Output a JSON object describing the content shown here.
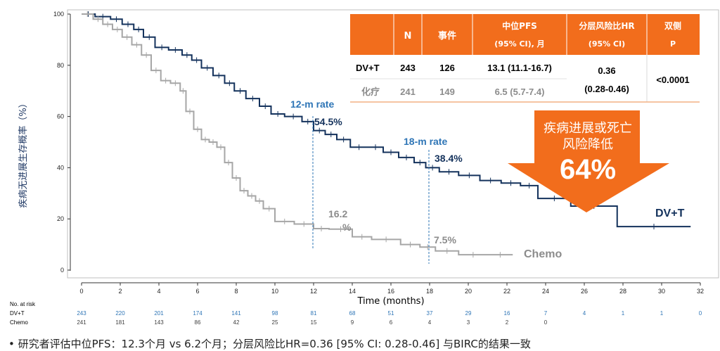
{
  "chart_data": {
    "type": "line",
    "xlabel": "Time (months)",
    "ylabel": "疾病无进展生存概率（%）",
    "xlim": [
      0,
      32
    ],
    "ylim": [
      0,
      100
    ],
    "x_ticks": [
      "0",
      "2",
      "4",
      "6",
      "8",
      "10",
      "12",
      "14",
      "16",
      "18",
      "20",
      "22",
      "24",
      "26",
      "28",
      "30",
      "32"
    ],
    "y_ticks": [
      "0",
      "20",
      "40",
      "60",
      "80",
      "100"
    ],
    "series": [
      {
        "name": "DV+T",
        "color": "#14325c",
        "x": [
          0,
          0.7,
          1.5,
          2.1,
          2.7,
          3.2,
          3.8,
          4.5,
          5.2,
          5.7,
          6.2,
          6.8,
          7.4,
          7.9,
          8.5,
          9.2,
          9.8,
          10.5,
          11.4,
          12.0,
          12.6,
          13.2,
          13.9,
          14.8,
          15.6,
          16.4,
          17.2,
          17.8,
          18.5,
          19.5,
          20.6,
          21.7,
          22.7,
          23.6,
          25.3,
          27.7,
          31.5
        ],
        "y": [
          100,
          99,
          98,
          96,
          94,
          91,
          87,
          86,
          84,
          82,
          79,
          76,
          73,
          70,
          67,
          64,
          61,
          60,
          58,
          54.5,
          53,
          51,
          48,
          48,
          46,
          44,
          42,
          40,
          38.4,
          37,
          35,
          34,
          33,
          28,
          25,
          17,
          17
        ]
      },
      {
        "name": "Chemo",
        "color": "#a6a6a6",
        "x": [
          0,
          0.6,
          1.1,
          1.6,
          2.1,
          2.6,
          3.1,
          3.6,
          4.1,
          4.6,
          5.1,
          5.4,
          5.8,
          6.2,
          6.6,
          7.0,
          7.4,
          7.8,
          8.2,
          8.6,
          9.0,
          9.4,
          10.0,
          11.0,
          12.0,
          12.8,
          14.0,
          15.0,
          16.5,
          17.5,
          18.3,
          19.5,
          21.0,
          22.3
        ],
        "y": [
          100,
          98,
          96,
          94,
          91,
          88,
          84,
          78,
          74,
          73,
          70,
          62,
          55,
          51,
          50,
          48,
          42,
          36,
          31,
          29,
          27,
          24,
          19,
          18,
          16.2,
          16,
          13,
          12,
          10,
          9,
          7.5,
          6,
          6,
          6
        ]
      }
    ],
    "annotations": {
      "dvt_series_label": "DV+T",
      "chemo_series_label": "Chemo",
      "rate12_title": "12-m rate",
      "rate12_dvt": "54.5%",
      "rate12_chemo_line1": "16.2",
      "rate12_chemo_line2": "%",
      "rate18_title": "18-m rate",
      "rate18_dvt": "38.4%",
      "rate18_chemo": "7.5%"
    },
    "summary_table": {
      "headers": [
        "",
        "N",
        "事件",
        "中位PFS",
        "(95% CI), 月",
        "分层风险比HR",
        "(95% CI)",
        "双侧",
        "P"
      ],
      "rows": [
        {
          "arm": "DV+T",
          "n": "243",
          "events": "126",
          "median": "13.1 (11.1-16.7)"
        },
        {
          "arm": "化疗",
          "n": "241",
          "events": "149",
          "median": "6.5 (5.7-7.4)"
        }
      ],
      "hr": "0.36",
      "hr_ci": "(0.28-0.46)",
      "p": "<0.0001"
    },
    "callout": {
      "line1": "疾病进展或死亡",
      "line2": "风险降低",
      "value": "64%"
    },
    "risk_table": {
      "title": "No. at risk",
      "rows": [
        {
          "label": "DV+T",
          "values": [
            "243",
            "220",
            "201",
            "174",
            "141",
            "98",
            "81",
            "68",
            "51",
            "37",
            "29",
            "16",
            "7",
            "4",
            "1",
            "1",
            "0"
          ]
        },
        {
          "label": "Chemo",
          "values": [
            "241",
            "181",
            "143",
            "86",
            "42",
            "25",
            "15",
            "9",
            "6",
            "4",
            "3",
            "2",
            "0"
          ]
        }
      ]
    },
    "footnote": "• 研究者评估中位PFS：12.3个月 vs 6.2个月；分层风险比HR=0.36 [95% CI: 0.28-0.46] 与BIRC的结果一致",
    "colors": {
      "table_header": "#f26d1c",
      "callout": "#f26d1c",
      "rate_label": "#2e75b6",
      "dvt": "#14325c",
      "chemo": "#a6a6a6"
    }
  }
}
